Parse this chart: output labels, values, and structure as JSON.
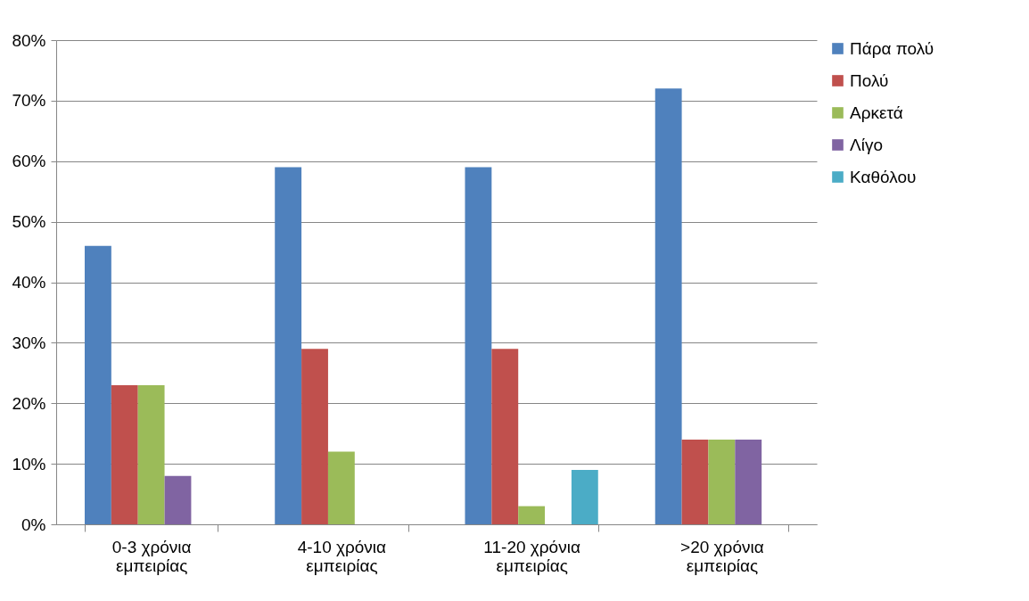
{
  "chart_data": {
    "type": "bar",
    "categories": [
      "0-3 χρόνια εμπειρίας",
      "4-10 χρόνια εμπειρίας",
      "11-20 χρόνια εμπειρίας",
      ">20 χρόνια εμπειρίας"
    ],
    "series": [
      {
        "name": "Πάρα πολύ",
        "color": "#4f81bd",
        "values": [
          46,
          59,
          59,
          72
        ]
      },
      {
        "name": "Πολύ",
        "color": "#c0504d",
        "values": [
          23,
          29,
          29,
          14
        ]
      },
      {
        "name": "Αρκετά",
        "color": "#9bbb59",
        "values": [
          23,
          12,
          3,
          14
        ]
      },
      {
        "name": "Λίγο",
        "color": "#8064a2",
        "values": [
          8,
          null,
          null,
          14
        ]
      },
      {
        "name": "Καθόλου",
        "color": "#4bacc6",
        "values": [
          null,
          null,
          9,
          null
        ]
      }
    ],
    "ylim": [
      0,
      80
    ],
    "yticks": [
      {
        "value": 0,
        "label": "0%"
      },
      {
        "value": 10,
        "label": "10%"
      },
      {
        "value": 20,
        "label": "20%"
      },
      {
        "value": 30,
        "label": "30%"
      },
      {
        "value": 40,
        "label": "40%"
      },
      {
        "value": 50,
        "label": "50%"
      },
      {
        "value": 60,
        "label": "60%"
      },
      {
        "value": 70,
        "label": "70%"
      },
      {
        "value": 80,
        "label": "80%"
      }
    ],
    "grid": "y",
    "legend": "right"
  }
}
